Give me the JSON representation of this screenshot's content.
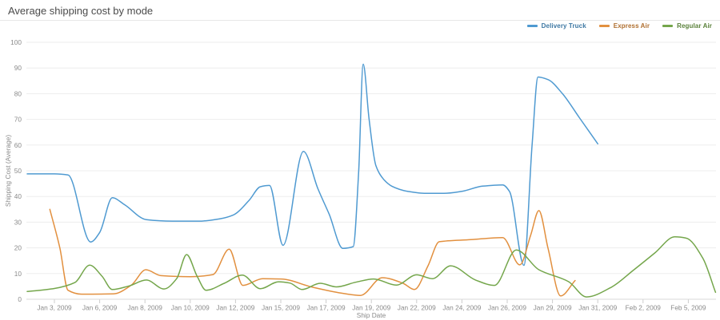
{
  "header": {
    "title": "Average shipping cost by mode"
  },
  "colors": {
    "grid": "#ededed",
    "axis_line": "#d9d9d9",
    "tick": "#cccccc",
    "axis_text": "#8a8a8a",
    "title_text": "#4b4b4b"
  },
  "chart_data": {
    "type": "line",
    "title": "Average shipping cost by mode",
    "xlabel": "Ship Date",
    "ylabel": "Shipping Cost (Average)",
    "ylim": [
      0,
      100
    ],
    "yticks": [
      0,
      10,
      20,
      30,
      40,
      50,
      60,
      70,
      80,
      90,
      100
    ],
    "grid": "horizontal",
    "legend_position": "top-right",
    "smoothing": "spline",
    "x_tick_labels": [
      "Jan 3, 2009",
      "Jan 6, 2009",
      "Jan 8, 2009",
      "Jan 10, 2009",
      "Jan 12, 2009",
      "Jan 15, 2009",
      "Jan 17, 2009",
      "Jan 19, 2009",
      "Jan 22, 2009",
      "Jan 24, 2009",
      "Jan 26, 2009",
      "Jan 29, 2009",
      "Jan 31, 2009",
      "Feb 2, 2009",
      "Feb 5, 2009"
    ],
    "x_unit": "tick index: 0 = Jan 3 2009 ... 14 = Feb 5 2009 (fractional = between labeled dates)",
    "series": [
      {
        "name": "Delivery Truck",
        "color": "#4f9ad1",
        "points": [
          [
            -0.6,
            48.8
          ],
          [
            0,
            48.8
          ],
          [
            0.3,
            48.4
          ],
          [
            0.8,
            22.3
          ],
          [
            1.0,
            26
          ],
          [
            1.28,
            39.5
          ],
          [
            1.55,
            36.8
          ],
          [
            2.03,
            31
          ],
          [
            2.6,
            30.4
          ],
          [
            3.2,
            30.4
          ],
          [
            3.65,
            31.3
          ],
          [
            3.95,
            32.8
          ],
          [
            4.3,
            38.5
          ],
          [
            4.55,
            43.8
          ],
          [
            4.75,
            44.3
          ],
          [
            5.05,
            21
          ],
          [
            5.5,
            57.5
          ],
          [
            5.82,
            43
          ],
          [
            6.07,
            33
          ],
          [
            6.37,
            19.8
          ],
          [
            6.6,
            20.5
          ],
          [
            6.72,
            50
          ],
          [
            6.82,
            91.5
          ],
          [
            6.95,
            70
          ],
          [
            7.1,
            52
          ],
          [
            7.28,
            46.5
          ],
          [
            7.45,
            44
          ],
          [
            7.8,
            42
          ],
          [
            8.2,
            41.2
          ],
          [
            8.6,
            41.2
          ],
          [
            9.0,
            42
          ],
          [
            9.45,
            44
          ],
          [
            9.9,
            44.5
          ],
          [
            10.05,
            42
          ],
          [
            10.37,
            13.2
          ],
          [
            10.55,
            60
          ],
          [
            10.68,
            86.5
          ],
          [
            10.9,
            85.5
          ],
          [
            11.22,
            80
          ],
          [
            11.6,
            70.5
          ],
          [
            12.0,
            60.5
          ]
        ]
      },
      {
        "name": "Express Air",
        "color": "#e2903f",
        "points": [
          [
            -0.1,
            35
          ],
          [
            0.12,
            20
          ],
          [
            0.3,
            3.5
          ],
          [
            0.6,
            2
          ],
          [
            1.3,
            2.1
          ],
          [
            1.7,
            5.5
          ],
          [
            2.02,
            11.5
          ],
          [
            2.35,
            9.2
          ],
          [
            3.0,
            8.8
          ],
          [
            3.5,
            9.6
          ],
          [
            3.86,
            19.5
          ],
          [
            4.16,
            5.4
          ],
          [
            4.6,
            8
          ],
          [
            5.0,
            7.9
          ],
          [
            5.7,
            4.7
          ],
          [
            6.4,
            2.2
          ],
          [
            6.76,
            1.5
          ],
          [
            7.24,
            8.4
          ],
          [
            7.7,
            6.2
          ],
          [
            7.95,
            3.8
          ],
          [
            8.25,
            13
          ],
          [
            8.5,
            22.4
          ],
          [
            9.2,
            23.2
          ],
          [
            9.9,
            24
          ],
          [
            10.28,
            13.4
          ],
          [
            10.52,
            25
          ],
          [
            10.7,
            34.5
          ],
          [
            10.9,
            20
          ],
          [
            11.18,
            1.3
          ],
          [
            11.5,
            7.3
          ]
        ]
      },
      {
        "name": "Regular Air",
        "color": "#74a64b",
        "points": [
          [
            -0.6,
            3
          ],
          [
            0,
            4.2
          ],
          [
            0.45,
            6.5
          ],
          [
            0.78,
            13.3
          ],
          [
            1.05,
            9
          ],
          [
            1.28,
            3.8
          ],
          [
            1.65,
            5.2
          ],
          [
            2.03,
            7.5
          ],
          [
            2.42,
            4
          ],
          [
            2.7,
            8
          ],
          [
            2.92,
            17.4
          ],
          [
            3.15,
            9
          ],
          [
            3.35,
            3.5
          ],
          [
            3.75,
            6.2
          ],
          [
            4.15,
            9.4
          ],
          [
            4.55,
            4.1
          ],
          [
            4.95,
            6.8
          ],
          [
            5.2,
            6.3
          ],
          [
            5.47,
            3.8
          ],
          [
            5.87,
            6.2
          ],
          [
            6.23,
            4.8
          ],
          [
            6.65,
            6.6
          ],
          [
            7.05,
            7.9
          ],
          [
            7.55,
            5.5
          ],
          [
            8.0,
            9.5
          ],
          [
            8.35,
            8
          ],
          [
            8.75,
            13
          ],
          [
            9.3,
            7.5
          ],
          [
            9.72,
            5.4
          ],
          [
            10.2,
            19.2
          ],
          [
            10.7,
            11.5
          ],
          [
            11.36,
            6.8
          ],
          [
            11.75,
            0.9
          ],
          [
            12.3,
            4.7
          ],
          [
            12.8,
            11.5
          ],
          [
            13.26,
            18
          ],
          [
            13.7,
            24.3
          ],
          [
            13.95,
            23.8
          ],
          [
            14.32,
            16
          ],
          [
            14.6,
            2.7
          ]
        ]
      }
    ]
  }
}
